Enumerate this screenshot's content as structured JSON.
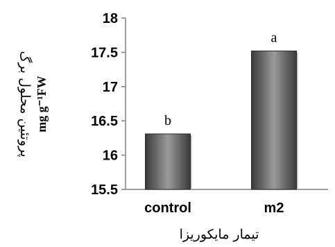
{
  "chart_data": {
    "type": "bar",
    "categories": [
      "control",
      "m2"
    ],
    "values": [
      16.31,
      17.52
    ],
    "data_labels": [
      "b",
      "a"
    ],
    "ylim": [
      15.5,
      18
    ],
    "yticks": [
      15.5,
      16,
      16.5,
      17,
      17.5,
      18
    ],
    "ytick_labels": [
      "15.5",
      "16",
      "16.5",
      "17",
      "17.5",
      "18"
    ],
    "xlabel": "تیمار مایکوریزا",
    "ylabel": "پروتئین محلول برگ",
    "ylabel_unit": "mg g⁻¹FW",
    "grid": false,
    "legend": "none",
    "colors": {
      "bar_dark": "#3a3a3a",
      "bar_light": "#9a9a9a",
      "axis": "#808080"
    }
  }
}
